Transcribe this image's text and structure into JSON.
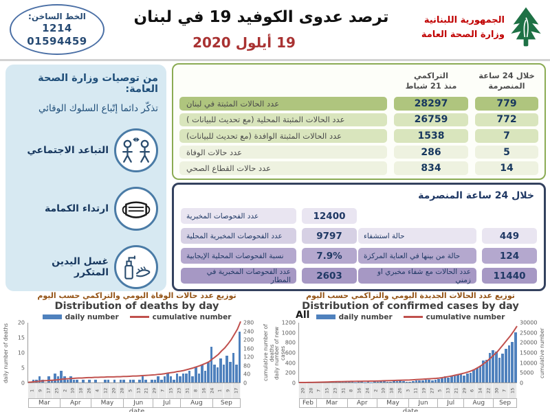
{
  "header": {
    "hotline": {
      "label": "الخط الساخن:",
      "number_short": "1214",
      "number_long": "01594459"
    },
    "title": "ترصد عدوى الكوفيد 19 في لبنان",
    "date": "19 أيلول 2020",
    "ministry": {
      "line1": "الجمهورية اللبنانية",
      "line2": "وزارة الصحة العامة"
    }
  },
  "sidebar": {
    "title": "من توصيات وزارة الصحة العامة:",
    "subtitle": "تذكّر دائما إتّباع السلوك الوقائي",
    "items": [
      {
        "label": "التباعد الاجتماعي",
        "icon": "social-distancing-icon"
      },
      {
        "label": "ارتداء الكمامة",
        "icon": "face-mask-icon"
      },
      {
        "label": "غسل اليدين المتكرر",
        "icon": "hand-washing-icon"
      }
    ]
  },
  "stats_table": {
    "header_24h_line1": "خلال 24 ساعة",
    "header_24h_line2": "المنصرمة",
    "header_cum_line1": "التراكمي",
    "header_cum_line2": "منذ 21 شباط",
    "rows": [
      {
        "label": "عدد الحالات المثبتة في لبنان",
        "h24": "779",
        "cumulative": "28297"
      },
      {
        "label": "عدد الحالات المثبتة المحلية  (مع تحديث للبيانات )",
        "h24": "772",
        "cumulative": "26759"
      },
      {
        "label": "عدد الحالات المثبتة الوافدة (مع تحديث للبيانات)",
        "h24": "7",
        "cumulative": "1538"
      },
      {
        "label": "عدد حالات الوفاة",
        "h24": "5",
        "cumulative": "286"
      },
      {
        "label": "عدد حالات القطاع الصحي",
        "h24": "14",
        "cumulative": "834"
      }
    ]
  },
  "last24_table": {
    "title": "خلال 24 ساعة المنصرمة",
    "left_rows": [
      {
        "label": "عدد الفحوصات المخبرية",
        "value": "12400"
      },
      {
        "label": "عدد الفحوصات المخبرية المحلية",
        "value": "9797"
      },
      {
        "label": "نسبة الفحوصات المحلية الإيجابية",
        "value": "7.9%"
      },
      {
        "label": "عدد الفحوصات المخبرية في المطار",
        "value": "2603"
      }
    ],
    "right_rows": [
      {
        "label": "حالة استشفاء",
        "value": "449"
      },
      {
        "label": "حالة من بينها في العناية المركزة",
        "value": "124"
      },
      {
        "label": "عدد الحالات مع شفاء مخبري او زمني",
        "value": "11440"
      }
    ]
  },
  "colors": {
    "accent_red": "#c00000",
    "bar_blue": "#4f81bd",
    "line_red": "#c0504d",
    "green_border": "#8aab53",
    "green_row_dark": "#afc57e",
    "green_row_mid": "#d9e5bd",
    "green_row_light": "#eef2e0",
    "purple_border": "#33415e",
    "purple_shades": [
      "#e9e5f1",
      "#d6d0e4",
      "#b4a8ce",
      "#a698c4"
    ],
    "sidebar_bg": "#d7e9f2",
    "navy_text": "#17375e",
    "cedar_green": "#1e7145"
  },
  "chart_data": [
    {
      "type": "bar",
      "title_ar": "توزيع عدد حالات  الوفاة اليومي والتراكمي حسب اليوم",
      "title": "Distribution of deaths by day",
      "xlabel": "date",
      "ylabel_left": "daily number of deaths",
      "ylabel_right": "cumulative number of deaths",
      "ylim_left": [
        0,
        20
      ],
      "yticks_left": [
        0,
        5,
        10,
        15,
        20
      ],
      "ylim_right": [
        0,
        280
      ],
      "yticks_right": [
        0,
        40,
        80,
        120,
        160,
        200,
        240,
        280
      ],
      "legend_position": "top",
      "grid": false,
      "day_ticks": [
        "1",
        "9",
        "17",
        "25",
        "2",
        "10",
        "18",
        "26",
        "4",
        "12",
        "20",
        "28",
        "5",
        "13",
        "21",
        "29",
        "7",
        "15",
        "23",
        "31",
        "8",
        "16",
        "24",
        "1",
        "9",
        "17"
      ],
      "months": [
        {
          "name": "Mar",
          "span": 10
        },
        {
          "name": "Apr",
          "span": 10
        },
        {
          "name": "May",
          "span": 10
        },
        {
          "name": "Jun",
          "span": 10
        },
        {
          "name": "Jul",
          "span": 10
        },
        {
          "name": "Aug",
          "span": 10
        },
        {
          "name": "Sep",
          "span": 8
        }
      ],
      "series": [
        {
          "name": "daily number",
          "type": "bar",
          "color": "#4f81bd",
          "values": [
            0,
            1,
            1,
            2,
            1,
            0,
            2,
            1,
            3,
            2,
            4,
            2,
            1,
            2,
            1,
            1,
            0,
            1,
            0,
            1,
            0,
            1,
            0,
            0,
            1,
            1,
            0,
            1,
            0,
            1,
            1,
            0,
            1,
            1,
            0,
            1,
            2,
            1,
            0,
            1,
            1,
            2,
            1,
            2,
            3,
            2,
            1,
            3,
            2,
            3,
            3,
            4,
            2,
            5,
            3,
            6,
            4,
            7,
            12,
            6,
            5,
            8,
            6,
            9,
            7,
            10,
            6,
            17
          ]
        },
        {
          "name": "cumulative number",
          "type": "line",
          "color": "#c0504d",
          "values": [
            1,
            2,
            4,
            5,
            7,
            8,
            9,
            10,
            11,
            12,
            14,
            16,
            17,
            18,
            19,
            20,
            21,
            21,
            22,
            23,
            23,
            24,
            24,
            25,
            25,
            26,
            26,
            26,
            27,
            27,
            28,
            28,
            29,
            30,
            30,
            31,
            32,
            33,
            34,
            35,
            36,
            38,
            39,
            41,
            44,
            46,
            48,
            51,
            53,
            56,
            60,
            64,
            68,
            73,
            78,
            84,
            90,
            97,
            109,
            120,
            132,
            148,
            162,
            180,
            200,
            225,
            250,
            286
          ]
        }
      ]
    },
    {
      "type": "bar",
      "title_ar": "توزيع عدد الحالات الجديدة اليومي والتراكمي حسب اليوم",
      "title": "Distribution of confirmed cases by day",
      "all_label": "All",
      "xlabel": "date",
      "ylabel_left": "daily number of new cases",
      "ylabel_right": "cumulative number",
      "ylim_left": [
        0,
        1200
      ],
      "yticks_left": [
        0,
        200,
        400,
        600,
        800,
        1000,
        1200
      ],
      "ylim_right": [
        0,
        30000
      ],
      "yticks_right": [
        0,
        5000,
        10000,
        15000,
        20000,
        25000,
        30000
      ],
      "legend_position": "top",
      "grid": false,
      "day_ticks": [
        "20",
        "28",
        "7",
        "15",
        "23",
        "31",
        "8",
        "16",
        "24",
        "2",
        "10",
        "18",
        "26",
        "3",
        "11",
        "19",
        "27",
        "5",
        "13",
        "21",
        "29",
        "6",
        "14",
        "22",
        "30",
        "7",
        "15"
      ],
      "months": [
        {
          "name": "Feb",
          "span": 3
        },
        {
          "name": "Mar",
          "span": 10
        },
        {
          "name": "Apr",
          "span": 10
        },
        {
          "name": "May",
          "span": 10
        },
        {
          "name": "Jun",
          "span": 10
        },
        {
          "name": "Jul",
          "span": 10
        },
        {
          "name": "Aug",
          "span": 9
        },
        {
          "name": "Sep",
          "span": 6
        }
      ],
      "series": [
        {
          "name": "daily number",
          "type": "bar",
          "color": "#4f81bd",
          "values": [
            1,
            2,
            3,
            5,
            8,
            10,
            12,
            15,
            12,
            18,
            14,
            16,
            12,
            10,
            8,
            12,
            9,
            7,
            10,
            8,
            6,
            9,
            7,
            8,
            12,
            25,
            30,
            18,
            15,
            22,
            28,
            35,
            26,
            20,
            15,
            30,
            45,
            40,
            35,
            50,
            60,
            48,
            55,
            65,
            80,
            120,
            95,
            135,
            150,
            166,
            175,
            132,
            185,
            200,
            255,
            295,
            336,
            439,
            456,
            600,
            650,
            621,
            502,
            579,
            670,
            740,
            820,
            1006
          ]
        },
        {
          "name": "cumulative number",
          "type": "line",
          "color": "#c0504d",
          "values": [
            1,
            4,
            10,
            30,
            60,
            100,
            140,
            180,
            230,
            280,
            330,
            380,
            420,
            450,
            480,
            510,
            540,
            570,
            600,
            620,
            640,
            660,
            680,
            700,
            730,
            790,
            850,
            900,
            950,
            1000,
            1060,
            1120,
            1160,
            1200,
            1250,
            1350,
            1450,
            1550,
            1650,
            1750,
            1850,
            1950,
            2050,
            2200,
            2400,
            2700,
            3000,
            3300,
            3650,
            4000,
            4400,
            4800,
            5300,
            5900,
            6600,
            7500,
            8500,
            9700,
            11000,
            12500,
            14000,
            15500,
            17500,
            19500,
            21500,
            23500,
            25800,
            28297
          ]
        }
      ]
    }
  ]
}
